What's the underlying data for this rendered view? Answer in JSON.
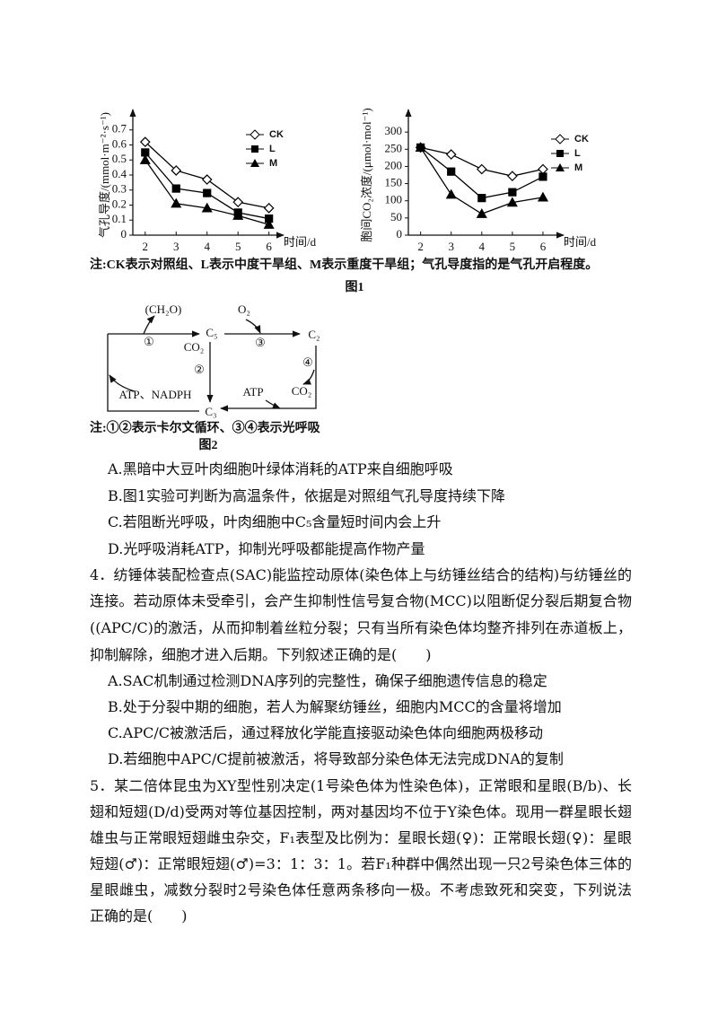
{
  "figure1": {
    "charts": [
      {
        "type": "line",
        "ylabel": "气孔导度/(mmol·m⁻²·s⁻¹)",
        "xlabel": "时间/d",
        "x": [
          2,
          3,
          4,
          5,
          6
        ],
        "xlim": [
          1.6,
          6.3
        ],
        "xticks": [
          2,
          3,
          4,
          5,
          6
        ],
        "ylim": [
          0,
          0.8
        ],
        "yticks": [
          0,
          0.1,
          0.2,
          0.3,
          0.4,
          0.5,
          0.6,
          0.7
        ],
        "series": [
          {
            "name": "CK",
            "color": "#000000",
            "marker": "diamond",
            "values": [
              0.62,
              0.43,
              0.37,
              0.22,
              0.18
            ]
          },
          {
            "name": "L",
            "color": "#000000",
            "marker": "square",
            "values": [
              0.55,
              0.31,
              0.28,
              0.15,
              0.11
            ]
          },
          {
            "name": "M",
            "color": "#000000",
            "marker": "triangle",
            "values": [
              0.5,
              0.21,
              0.18,
              0.13,
              0.07
            ]
          }
        ]
      },
      {
        "type": "line",
        "ylabel": "胞间CO₂浓度/(μmol·mol⁻¹)",
        "xlabel": "时间/d",
        "x": [
          2,
          3,
          4,
          5,
          6
        ],
        "xlim": [
          1.6,
          6.5
        ],
        "xticks": [
          2,
          3,
          4,
          5,
          6
        ],
        "ylim": [
          0,
          350
        ],
        "yticks": [
          0,
          50,
          100,
          150,
          200,
          250,
          300
        ],
        "series": [
          {
            "name": "CK",
            "color": "#000000",
            "marker": "diamond",
            "values": [
              255,
              235,
              192,
              172,
              192
            ]
          },
          {
            "name": "L",
            "color": "#000000",
            "marker": "square",
            "values": [
              255,
              185,
              108,
              125,
              170
            ]
          },
          {
            "name": "M",
            "color": "#000000",
            "marker": "triangle",
            "values": [
              255,
              118,
              62,
              95,
              110
            ]
          }
        ]
      }
    ],
    "note": "注:CK表示对照组、L表示中度干旱组、M表示重度干旱组；气孔导度指的是气孔开启程度。",
    "caption": "图1"
  },
  "figure2": {
    "labels": [
      "(CH₂O)",
      "①",
      "C₅",
      "O₂",
      "③",
      "C₂",
      "CO₂",
      "②",
      "④",
      "CO₂",
      "ATP、NADPH",
      "ATP",
      "C₃"
    ],
    "note": "注:①②表示卡尔文循环、③④表示光呼吸",
    "caption": "图2"
  },
  "question3_options": [
    "A.黑暗中大豆叶肉细胞叶绿体消耗的ATP来自细胞呼吸",
    "B.图1实验可判断为高温条件，依据是对照组气孔导度持续下降",
    "C.若阻断光呼吸，叶肉细胞中C₅含量短时间内会上升",
    "D.光呼吸消耗ATP，抑制光呼吸都能提高作物产量"
  ],
  "question4": {
    "stem_lines": [
      "4．纺锤体装配检查点(SAC)能监控动原体(染色体上与纺锤丝结合的结构)与纺锤丝的",
      "连接。若动原体未受牵引，会产生抑制性信号复合物(MCC)以阻断促分裂后期复合物",
      "((APC/C)的激活，从而抑制着丝粒分裂；只有当所有染色体均整齐排列在赤道板上，",
      "抑制解除，细胞才进入后期。下列叙述正确的是(　　)"
    ],
    "options": [
      "A.SAC机制通过检测DNA序列的完整性，确保子细胞遗传信息的稳定",
      "B.处于分裂中期的细胞，若人为解聚纺锤丝，细胞内MCC的含量将增加",
      "C.APC/C被激活后，通过释放化学能直接驱动染色体向细胞两极移动",
      "D.若细胞中APC/C提前被激活，将导致部分染色体无法完成DNA的复制"
    ]
  },
  "question5": {
    "stem_lines": [
      "5．某二倍体昆虫为XY型性别决定(1号染色体为性染色体)，正常眼和星眼(B/b)、长",
      "翅和短翅(D/d)受两对等位基因控制，两对基因均不位于Y染色体。现用一群星眼长翅",
      "雄虫与正常眼短翅雌虫杂交，F₁表型及比例为：星眼长翅(♀)：正常眼长翅(♀)：星眼",
      "短翅(♂)：正常眼短翅(♂)=3：1：3：1。若F₁种群中偶然出现一只2号染色体三体的",
      "星眼雌虫，减数分裂时2号染色体任意两条移向一极。不考虑致死和突变，下列说法",
      "正确的是(　　)"
    ]
  }
}
